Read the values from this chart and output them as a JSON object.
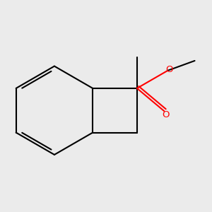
{
  "background_color": "#ebebeb",
  "bond_color": "#000000",
  "heteroatom_O_color": "#ff0000",
  "line_width": 1.5,
  "figsize": [
    3.0,
    3.0
  ],
  "dpi": 100,
  "scale": 1.0
}
